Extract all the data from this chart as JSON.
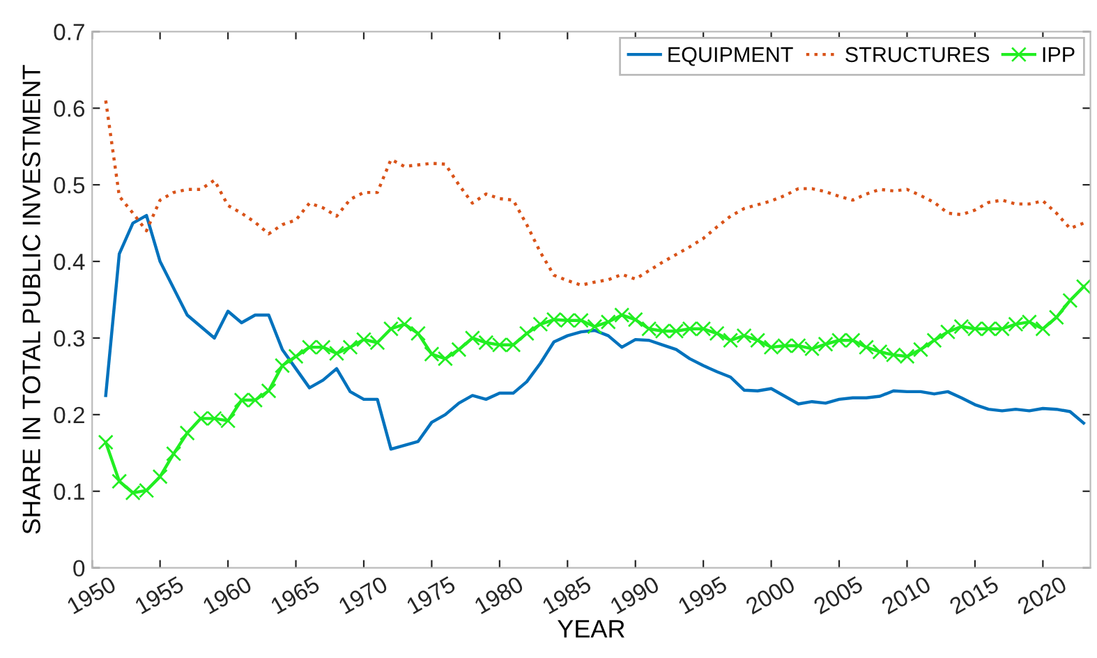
{
  "chart_data": {
    "type": "line",
    "xlabel": "YEAR",
    "ylabel": "SHARE IN TOTAL PUBLIC INVESTMENT",
    "x": [
      1951,
      1952,
      1953,
      1954,
      1955,
      1956,
      1957,
      1958,
      1959,
      1960,
      1961,
      1962,
      1963,
      1964,
      1965,
      1966,
      1967,
      1968,
      1969,
      1970,
      1971,
      1972,
      1973,
      1974,
      1975,
      1976,
      1977,
      1978,
      1979,
      1980,
      1981,
      1982,
      1983,
      1984,
      1985,
      1986,
      1987,
      1988,
      1989,
      1990,
      1991,
      1992,
      1993,
      1994,
      1995,
      1996,
      1997,
      1998,
      1999,
      2000,
      2001,
      2002,
      2003,
      2004,
      2005,
      2006,
      2007,
      2008,
      2009,
      2010,
      2011,
      2012,
      2013,
      2014,
      2015,
      2016,
      2017,
      2018,
      2019,
      2020,
      2021,
      2022,
      2023
    ],
    "series": [
      {
        "name": "EQUIPMENT",
        "color": "#0072bd",
        "line_style": "solid",
        "marker": "none",
        "values": [
          0.225,
          0.41,
          0.45,
          0.46,
          0.4,
          0.365,
          0.33,
          0.315,
          0.3,
          0.335,
          0.32,
          0.33,
          0.33,
          0.285,
          0.26,
          0.235,
          0.245,
          0.26,
          0.23,
          0.22,
          0.22,
          0.155,
          0.16,
          0.165,
          0.19,
          0.2,
          0.215,
          0.225,
          0.22,
          0.228,
          0.228,
          0.243,
          0.267,
          0.295,
          0.303,
          0.308,
          0.31,
          0.303,
          0.288,
          0.298,
          0.297,
          0.291,
          0.285,
          0.273,
          0.264,
          0.256,
          0.249,
          0.232,
          0.231,
          0.234,
          0.224,
          0.214,
          0.217,
          0.215,
          0.22,
          0.222,
          0.222,
          0.224,
          0.231,
          0.23,
          0.23,
          0.227,
          0.23,
          0.222,
          0.213,
          0.207,
          0.205,
          0.207,
          0.205,
          0.208,
          0.207,
          0.204,
          0.189
        ]
      },
      {
        "name": "STRUCTURES",
        "color": "#d95319",
        "line_style": "dotted",
        "marker": "none",
        "values": [
          0.61,
          0.485,
          0.463,
          0.44,
          0.48,
          0.49,
          0.494,
          0.494,
          0.506,
          0.473,
          0.463,
          0.451,
          0.436,
          0.448,
          0.454,
          0.476,
          0.47,
          0.459,
          0.481,
          0.49,
          0.49,
          0.533,
          0.524,
          0.526,
          0.528,
          0.527,
          0.5,
          0.476,
          0.488,
          0.482,
          0.48,
          0.448,
          0.412,
          0.382,
          0.375,
          0.369,
          0.373,
          0.376,
          0.383,
          0.377,
          0.388,
          0.399,
          0.409,
          0.419,
          0.43,
          0.445,
          0.459,
          0.469,
          0.474,
          0.479,
          0.486,
          0.495,
          0.495,
          0.491,
          0.485,
          0.48,
          0.488,
          0.494,
          0.492,
          0.494,
          0.486,
          0.477,
          0.463,
          0.461,
          0.467,
          0.477,
          0.48,
          0.475,
          0.475,
          0.479,
          0.463,
          0.443,
          0.45
        ]
      },
      {
        "name": "IPP",
        "color": "#22ee22",
        "line_style": "solid",
        "marker": "cross",
        "values": [
          0.164,
          0.113,
          0.098,
          0.101,
          0.119,
          0.149,
          0.176,
          0.195,
          0.195,
          0.192,
          0.219,
          0.219,
          0.231,
          0.264,
          0.276,
          0.288,
          0.288,
          0.28,
          0.288,
          0.298,
          0.294,
          0.312,
          0.318,
          0.306,
          0.279,
          0.273,
          0.285,
          0.3,
          0.294,
          0.291,
          0.291,
          0.306,
          0.318,
          0.324,
          0.323,
          0.323,
          0.315,
          0.321,
          0.33,
          0.324,
          0.312,
          0.309,
          0.309,
          0.312,
          0.312,
          0.306,
          0.297,
          0.303,
          0.297,
          0.288,
          0.29,
          0.29,
          0.286,
          0.292,
          0.297,
          0.297,
          0.288,
          0.282,
          0.278,
          0.276,
          0.285,
          0.297,
          0.308,
          0.315,
          0.312,
          0.312,
          0.312,
          0.318,
          0.321,
          0.312,
          0.327,
          0.349,
          0.367
        ]
      }
    ],
    "xlim": [
      1950,
      2023.5
    ],
    "xticks": [
      1950,
      1955,
      1960,
      1965,
      1970,
      1975,
      1980,
      1985,
      1990,
      1995,
      2000,
      2005,
      2010,
      2015,
      2020
    ],
    "ylim": [
      0,
      0.7
    ],
    "yticks": [
      0,
      0.1,
      0.2,
      0.3,
      0.4,
      0.5,
      0.6,
      0.7
    ],
    "legend": "top right",
    "grid": false
  }
}
